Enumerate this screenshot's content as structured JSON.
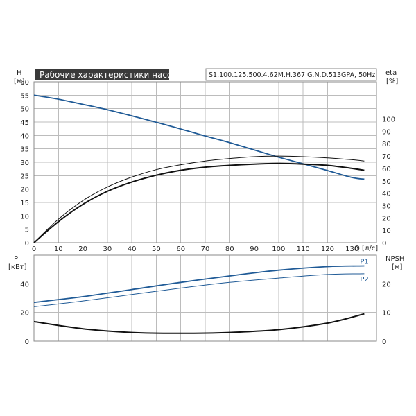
{
  "chart_data": [
    {
      "type": "line",
      "title": "Рабочие характеристики насоса",
      "subtitle": "S1.100.125.500.4.62M.H.367.G.N.D.513GPA, 50Hz",
      "xlabel": "Q [л/с]",
      "ylabel": "H",
      "ylabel_unit": "[м]",
      "y2label": "eta",
      "y2label_unit": "[%]",
      "xlim": [
        0,
        140
      ],
      "ylim": [
        0,
        60
      ],
      "y2lim": [
        0,
        100
      ],
      "xticks": [
        "0",
        "10",
        "20",
        "30",
        "40",
        "50",
        "60",
        "70",
        "80",
        "90",
        "100",
        "110",
        "120",
        "130"
      ],
      "yticks": [
        "0",
        "5",
        "10",
        "15",
        "20",
        "25",
        "30",
        "35",
        "40",
        "45",
        "50",
        "55",
        "60"
      ],
      "y2ticks": [
        "0",
        "10",
        "20",
        "30",
        "40",
        "50",
        "60",
        "70",
        "80",
        "90",
        "100"
      ],
      "grid": true,
      "series": [
        {
          "axis": "y",
          "color": "#1f5a96",
          "width": 1.8,
          "x": [
            0,
            10,
            20,
            30,
            40,
            50,
            60,
            70,
            80,
            90,
            100,
            110,
            120,
            130,
            135
          ],
          "y": [
            55,
            53.5,
            51.6,
            49.6,
            47.3,
            44.9,
            42.4,
            39.8,
            37.3,
            34.6,
            31.9,
            29.4,
            26.9,
            24.3,
            23.7
          ]
        },
        {
          "axis": "y2",
          "color": "#111111",
          "width": 1.0,
          "x": [
            0,
            10,
            20,
            30,
            40,
            50,
            60,
            70,
            80,
            90,
            100,
            110,
            120,
            130,
            135
          ],
          "y": [
            0,
            19,
            34,
            45,
            53,
            59,
            63,
            66,
            68,
            69.5,
            70,
            69.5,
            68.5,
            67,
            66
          ]
        },
        {
          "axis": "y2",
          "color": "#111111",
          "width": 2.0,
          "x": [
            0,
            10,
            20,
            30,
            40,
            50,
            60,
            70,
            80,
            90,
            100,
            110,
            120,
            130,
            135
          ],
          "y": [
            0,
            17,
            31,
            41.5,
            49,
            54.5,
            58.5,
            61,
            62.5,
            63.5,
            64,
            63.5,
            62.5,
            60,
            58.5
          ]
        }
      ]
    },
    {
      "type": "line",
      "ylabel": "P",
      "ylabel_unit": "[кВт]",
      "y2label": "NPSH",
      "y2label_unit": "[м]",
      "xlim": [
        0,
        140
      ],
      "ylim": [
        0,
        60
      ],
      "y2lim": [
        0,
        30
      ],
      "yticks": [
        "0",
        "20",
        "40"
      ],
      "y2ticks": [
        "0",
        "10",
        "20"
      ],
      "grid": true,
      "series": [
        {
          "name": "P1",
          "axis": "y",
          "color": "#1f5a96",
          "width": 1.8,
          "x": [
            0,
            20,
            40,
            60,
            80,
            100,
            120,
            135
          ],
          "y": [
            27,
            31,
            36,
            41,
            45.5,
            49.5,
            52,
            52.5
          ]
        },
        {
          "name": "P2",
          "axis": "y",
          "color": "#1f5a96",
          "width": 1.0,
          "x": [
            0,
            20,
            40,
            60,
            80,
            100,
            120,
            135
          ],
          "y": [
            24,
            28,
            32.5,
            37,
            41,
            44,
            46.5,
            47
          ]
        },
        {
          "axis": "y2",
          "color": "#111111",
          "width": 2.0,
          "x": [
            0,
            20,
            40,
            60,
            80,
            100,
            120,
            135
          ],
          "y": [
            6.8,
            4.3,
            3.0,
            2.7,
            3.0,
            4.0,
            6.3,
            9.5
          ]
        }
      ]
    }
  ]
}
